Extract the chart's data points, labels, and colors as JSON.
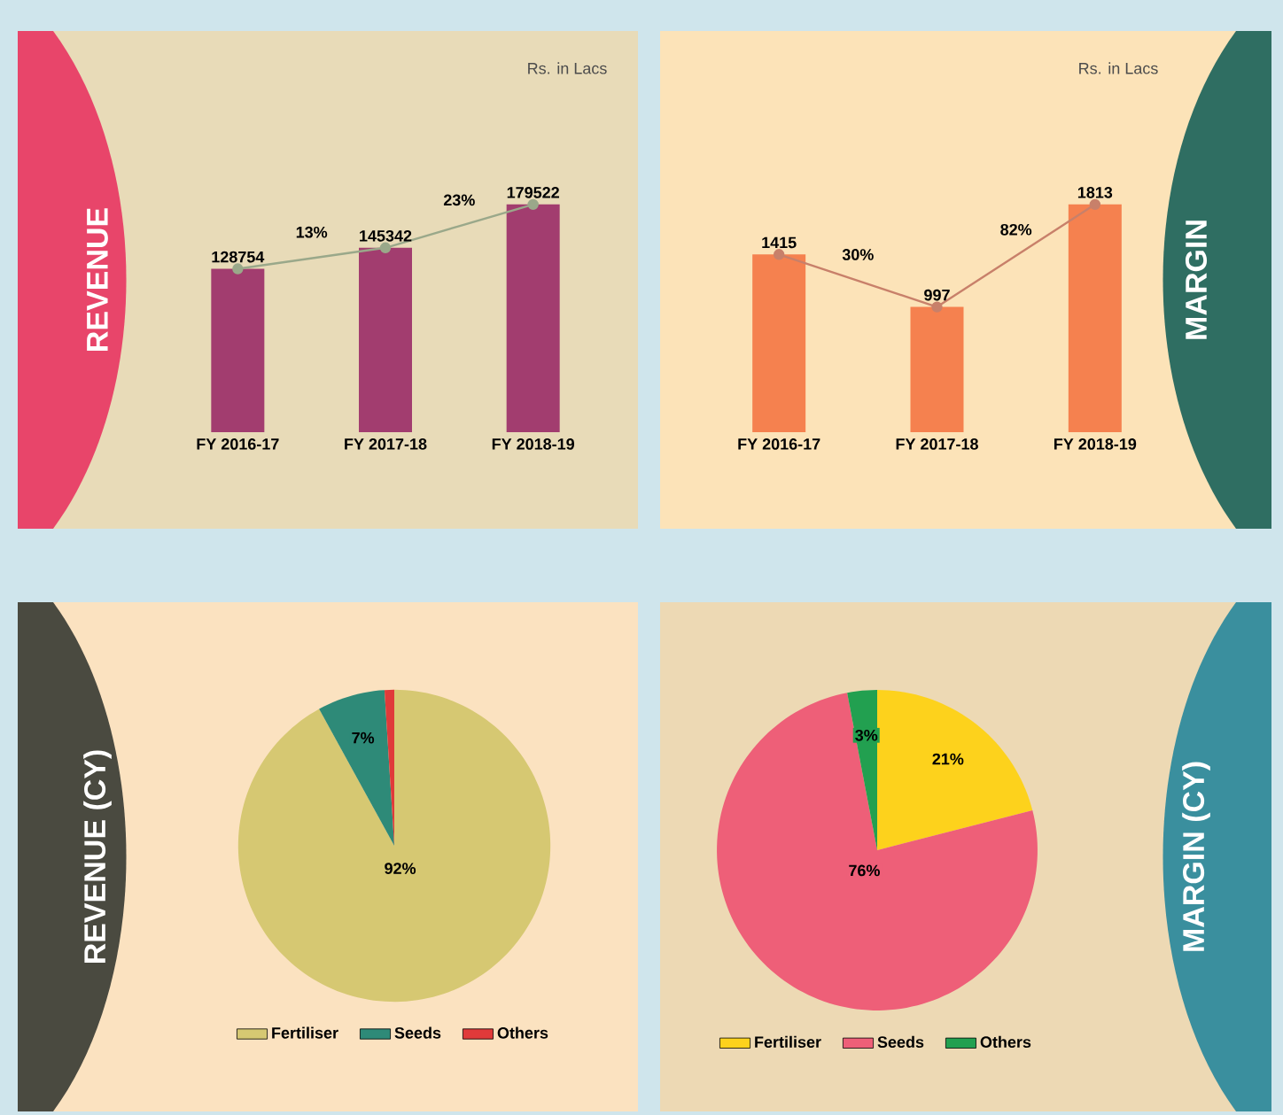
{
  "chart_data": [
    {
      "type": "bar",
      "title": "REVENUE",
      "subtitle": "Rs. in Lacs",
      "categories": [
        "FY 2016-17",
        "FY 2017-18",
        "FY 2018-19"
      ],
      "series": [
        {
          "type": "bar",
          "color": "#a23d6f",
          "values": [
            128754,
            145342,
            179522
          ],
          "value_labels": [
            "128754",
            "145342",
            "179522"
          ]
        },
        {
          "type": "line",
          "color": "#9aa88a",
          "values": [
            128754,
            145342,
            179522
          ]
        }
      ],
      "marker": "circle",
      "annotations": [
        "13%",
        "23%"
      ]
    },
    {
      "type": "bar",
      "title": "MARGIN",
      "subtitle": "Rs. in Lacs",
      "categories": [
        "FY 2016-17",
        "FY 2017-18",
        "FY 2018-19"
      ],
      "series": [
        {
          "type": "bar",
          "color": "#f5814f",
          "values": [
            1415,
            997,
            1813
          ],
          "value_labels": [
            "1415",
            "997",
            "1813"
          ]
        },
        {
          "type": "line",
          "color": "#c8806a",
          "values": [
            1415,
            997,
            1813
          ]
        }
      ],
      "marker": "circle",
      "annotations": [
        "30%",
        "82%"
      ]
    },
    {
      "type": "pie",
      "title": "REVENUE (CY)",
      "categories": [
        "Fertiliser",
        "Seeds",
        "Others"
      ],
      "values": [
        92,
        7,
        1
      ],
      "colors": [
        "#d6c872",
        "#2e8a78",
        "#e03a3a"
      ],
      "value_labels": [
        "92%",
        "7%",
        null
      ],
      "legend": "bottom"
    },
    {
      "type": "pie",
      "title": "MARGIN (CY)",
      "categories": [
        "Fertiliser",
        "Seeds",
        "Others"
      ],
      "values": [
        21,
        76,
        3
      ],
      "colors": [
        "#fdd21c",
        "#ee5f78",
        "#22a050"
      ],
      "value_labels": [
        "21%",
        "76%",
        "3%"
      ],
      "legend": "bottom"
    }
  ]
}
